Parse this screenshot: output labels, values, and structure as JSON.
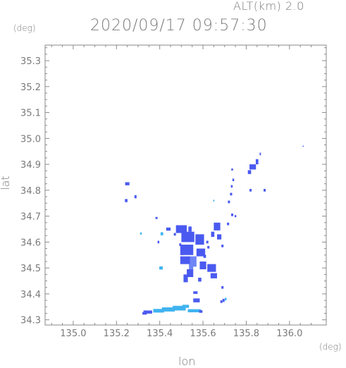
{
  "header": {
    "altitude_label": "ALT(km) 2.0",
    "timestamp": "2020/09/17 09:57:30"
  },
  "axes": {
    "y_unit": "(deg)",
    "x_unit": "(deg)",
    "y_label": "lat",
    "x_label": "lon"
  },
  "chart_data": {
    "type": "heatmap",
    "title": "2020/09/17 09:57:30",
    "xlabel": "lon",
    "ylabel": "lat",
    "xlim": [
      134.87,
      136.17
    ],
    "ylim": [
      34.28,
      35.36
    ],
    "x_ticks": [
      "135.0",
      "135.2",
      "135.4",
      "135.6",
      "135.8",
      "136.0"
    ],
    "y_ticks": [
      "34.3",
      "34.4",
      "34.5",
      "34.6",
      "34.7",
      "34.8",
      "34.9",
      "35.0",
      "35.1",
      "35.2",
      "35.3"
    ],
    "colors": {
      "main": "#4a5af0",
      "light": "#6f86f7",
      "cyan": "#3fb3f0",
      "frame": "#8a8a8a"
    },
    "cells": [
      [
        135.25,
        34.825,
        0.02,
        0.012,
        "main"
      ],
      [
        135.245,
        34.76,
        0.012,
        0.012,
        "main"
      ],
      [
        135.288,
        34.775,
        0.01,
        0.012,
        "main"
      ],
      [
        135.313,
        34.633,
        0.008,
        0.008,
        "cyan"
      ],
      [
        135.385,
        34.693,
        0.01,
        0.008,
        "main"
      ],
      [
        135.394,
        34.6,
        0.008,
        0.01,
        "main"
      ],
      [
        135.41,
        34.632,
        0.012,
        0.012,
        "cyan"
      ],
      [
        135.44,
        34.65,
        0.02,
        0.012,
        "main"
      ],
      [
        135.406,
        34.5,
        0.016,
        0.012,
        "cyan"
      ],
      [
        135.5,
        34.65,
        0.05,
        0.03,
        "main"
      ],
      [
        135.53,
        34.62,
        0.06,
        0.04,
        "main"
      ],
      [
        135.585,
        34.61,
        0.04,
        0.04,
        "main"
      ],
      [
        135.525,
        34.57,
        0.06,
        0.04,
        "main"
      ],
      [
        135.59,
        34.56,
        0.04,
        0.03,
        "main"
      ],
      [
        135.52,
        34.53,
        0.05,
        0.03,
        "main"
      ],
      [
        135.555,
        34.525,
        0.03,
        0.04,
        "light"
      ],
      [
        135.6,
        34.51,
        0.03,
        0.03,
        "main"
      ],
      [
        135.64,
        34.5,
        0.04,
        0.03,
        "main"
      ],
      [
        135.65,
        34.47,
        0.03,
        0.02,
        "main"
      ],
      [
        135.54,
        34.48,
        0.03,
        0.03,
        "main"
      ],
      [
        135.52,
        34.46,
        0.02,
        0.03,
        "main"
      ],
      [
        135.585,
        34.455,
        0.015,
        0.015,
        "main"
      ],
      [
        135.545,
        34.505,
        0.02,
        0.02,
        "light"
      ],
      [
        135.665,
        34.66,
        0.03,
        0.03,
        "main"
      ],
      [
        135.675,
        34.62,
        0.02,
        0.02,
        "main"
      ],
      [
        135.645,
        34.63,
        0.015,
        0.02,
        "main"
      ],
      [
        135.69,
        34.585,
        0.01,
        0.01,
        "main"
      ],
      [
        135.47,
        34.63,
        0.01,
        0.01,
        "main"
      ],
      [
        135.495,
        34.59,
        0.01,
        0.01,
        "main"
      ],
      [
        135.505,
        34.56,
        0.015,
        0.02,
        "main"
      ],
      [
        135.625,
        34.58,
        0.01,
        0.01,
        "main"
      ],
      [
        135.608,
        34.545,
        0.012,
        0.012,
        "main"
      ],
      [
        135.62,
        34.6,
        0.01,
        0.01,
        "main"
      ],
      [
        135.54,
        34.65,
        0.015,
        0.02,
        "main"
      ],
      [
        135.565,
        34.405,
        0.02,
        0.01,
        "main"
      ],
      [
        135.57,
        34.375,
        0.03,
        0.015,
        "main"
      ],
      [
        135.56,
        34.335,
        0.06,
        0.012,
        "cyan"
      ],
      [
        135.59,
        34.332,
        0.015,
        0.01,
        "main"
      ],
      [
        135.49,
        34.345,
        0.06,
        0.018,
        "cyan"
      ],
      [
        135.44,
        34.34,
        0.06,
        0.016,
        "cyan"
      ],
      [
        135.395,
        34.335,
        0.05,
        0.014,
        "cyan"
      ],
      [
        135.345,
        34.33,
        0.04,
        0.012,
        "main"
      ],
      [
        135.33,
        34.325,
        0.02,
        0.01,
        "main"
      ],
      [
        135.52,
        34.352,
        0.03,
        0.012,
        "cyan"
      ],
      [
        135.69,
        34.425,
        0.01,
        0.01,
        "main"
      ],
      [
        135.695,
        34.375,
        0.01,
        0.012,
        "main"
      ],
      [
        135.685,
        34.37,
        0.01,
        0.01,
        "main"
      ],
      [
        135.705,
        34.38,
        0.008,
        0.01,
        "cyan"
      ],
      [
        135.716,
        34.67,
        0.01,
        0.01,
        "main"
      ],
      [
        135.735,
        34.705,
        0.01,
        0.01,
        "main"
      ],
      [
        135.75,
        34.7,
        0.008,
        0.008,
        "main"
      ],
      [
        135.72,
        34.755,
        0.01,
        0.01,
        "main"
      ],
      [
        135.73,
        34.785,
        0.01,
        0.01,
        "main"
      ],
      [
        135.733,
        34.815,
        0.008,
        0.01,
        "main"
      ],
      [
        135.74,
        34.84,
        0.008,
        0.01,
        "main"
      ],
      [
        135.735,
        34.88,
        0.008,
        0.008,
        "main"
      ],
      [
        135.83,
        34.89,
        0.03,
        0.02,
        "main"
      ],
      [
        135.815,
        34.87,
        0.015,
        0.015,
        "main"
      ],
      [
        135.85,
        34.91,
        0.012,
        0.02,
        "main"
      ],
      [
        135.865,
        34.94,
        0.006,
        0.01,
        "main"
      ],
      [
        135.885,
        34.8,
        0.01,
        0.01,
        "main"
      ],
      [
        135.82,
        34.8,
        0.01,
        0.01,
        "main"
      ],
      [
        135.65,
        34.76,
        0.006,
        0.006,
        "cyan"
      ],
      [
        136.063,
        34.97,
        0.004,
        0.004,
        "main"
      ]
    ]
  }
}
